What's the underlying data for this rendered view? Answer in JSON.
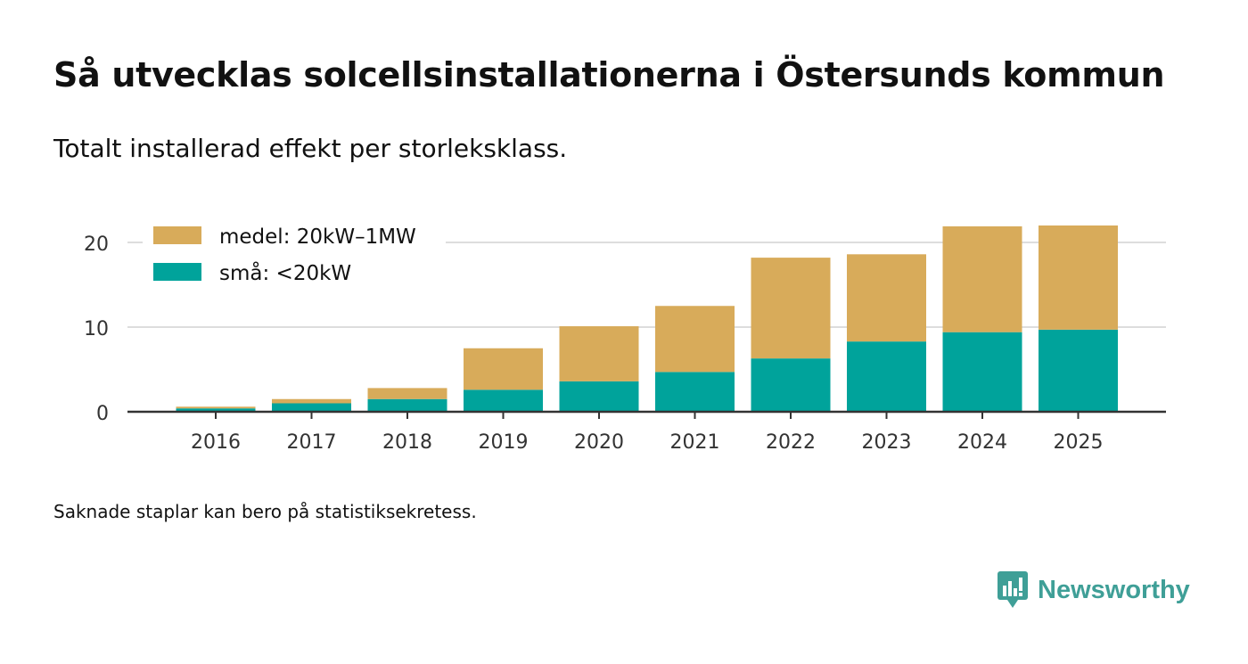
{
  "title": "Så utvecklas solcellsinstallationerna i Östersunds kommun",
  "subtitle": "Totalt installerad effekt per storleksklass.",
  "note": "Saknade staplar kan bero på statistiksekretess.",
  "brand": {
    "name": "Newsworthy",
    "icon": "newsworthy-logo-icon"
  },
  "colors": {
    "medel": "#d8ab5a",
    "sma": "#00a39b",
    "grid": "#dddddd",
    "axis": "#333333",
    "brand": "#3f9f97"
  },
  "chart_data": {
    "type": "bar",
    "stacked": true,
    "categories": [
      "2016",
      "2017",
      "2018",
      "2019",
      "2020",
      "2021",
      "2022",
      "2023",
      "2024",
      "2025"
    ],
    "series": [
      {
        "name": "små: <20kW",
        "key": "sma",
        "values": [
          0.4,
          1.0,
          1.5,
          2.6,
          3.6,
          4.7,
          6.3,
          8.3,
          9.4,
          9.7
        ]
      },
      {
        "name": "medel: 20kW–1MW",
        "key": "medel",
        "values": [
          0.2,
          0.5,
          1.3,
          4.9,
          6.5,
          7.8,
          11.9,
          10.3,
          12.5,
          12.3
        ]
      }
    ],
    "legend_order": [
      "medel",
      "sma"
    ],
    "yticks": [
      0,
      10,
      20
    ],
    "ylim": [
      0,
      22
    ],
    "xlabel": "",
    "ylabel": "",
    "grid": true,
    "legend_position": "top-left"
  }
}
